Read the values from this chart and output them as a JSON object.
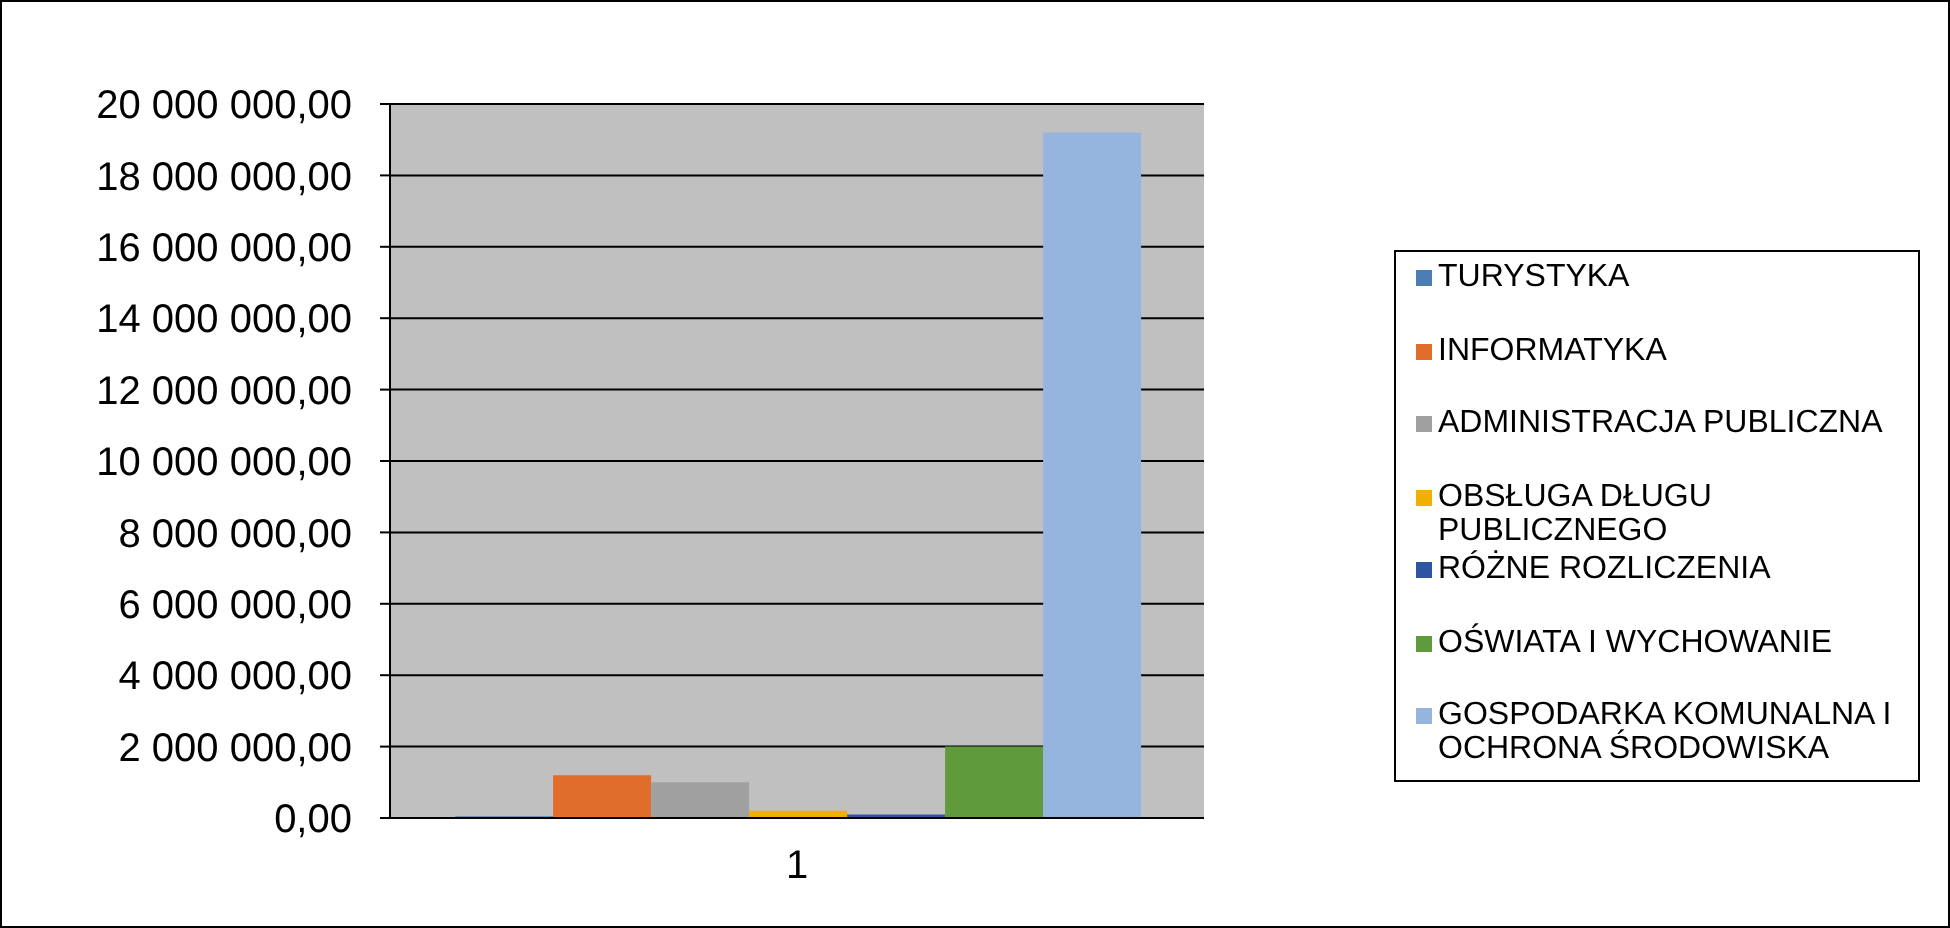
{
  "chart_data": {
    "type": "bar",
    "categories": [
      "1"
    ],
    "series": [
      {
        "name": "TURYSTYKA",
        "color": "#4a7fb5",
        "values": [
          50000
        ]
      },
      {
        "name": "INFORMATYKA",
        "color": "#e06d2a",
        "values": [
          1200000
        ]
      },
      {
        "name": "ADMINISTRACJA PUBLICZNA",
        "color": "#a0a0a0",
        "values": [
          1000000
        ]
      },
      {
        "name": "OBSŁUGA DŁUGU PUBLICZNEGO",
        "color": "#f0b000",
        "values": [
          200000
        ]
      },
      {
        "name": "RÓŻNE ROZLICZENIA",
        "color": "#2f55a0",
        "values": [
          100000
        ]
      },
      {
        "name": "OŚWIATA I WYCHOWANIE",
        "color": "#5f9a3c",
        "values": [
          2000000
        ]
      },
      {
        "name": "GOSPODARKA KOMUNALNA I OCHRONA ŚRODOWISKA",
        "color": "#95b5de",
        "values": [
          19200000
        ]
      }
    ],
    "ylim": [
      0,
      20000000
    ],
    "yticks": [
      {
        "value": 0,
        "label": "0,00"
      },
      {
        "value": 2000000,
        "label": "2 000 000,00"
      },
      {
        "value": 4000000,
        "label": "4 000 000,00"
      },
      {
        "value": 6000000,
        "label": "6 000 000,00"
      },
      {
        "value": 8000000,
        "label": "8 000 000,00"
      },
      {
        "value": 10000000,
        "label": "10 000 000,00"
      },
      {
        "value": 12000000,
        "label": "12 000 000,00"
      },
      {
        "value": 14000000,
        "label": "14 000 000,00"
      },
      {
        "value": 16000000,
        "label": "16 000 000,00"
      },
      {
        "value": 18000000,
        "label": "18 000 000,00"
      },
      {
        "value": 20000000,
        "label": "20 000 000,00"
      }
    ],
    "grid": "y",
    "legend": "right"
  }
}
